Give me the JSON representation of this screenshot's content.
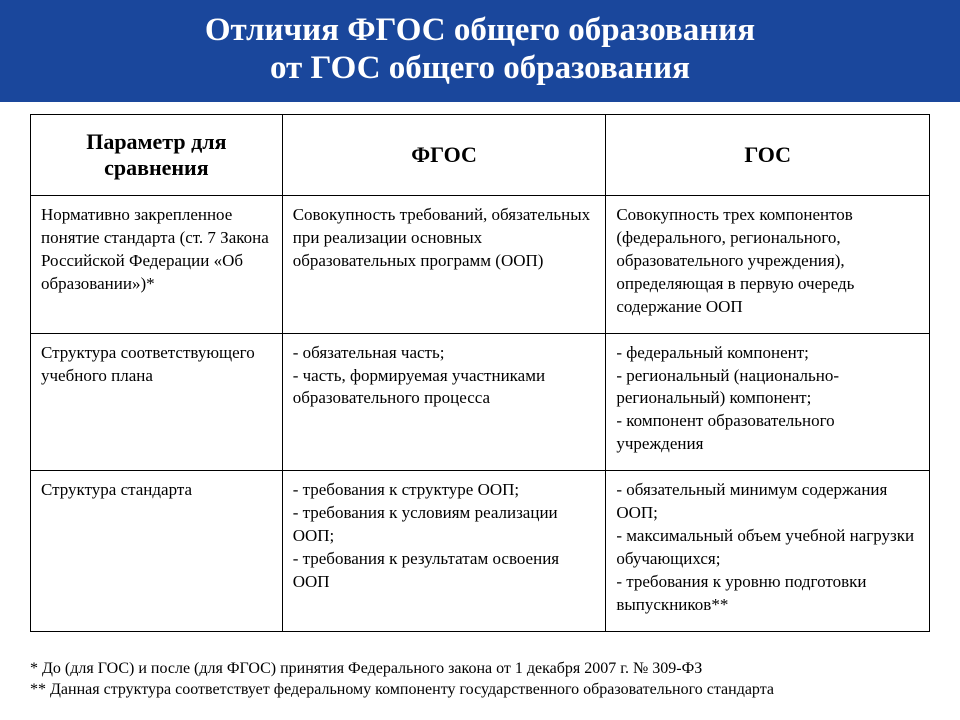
{
  "header": {
    "line1": "Отличия ФГОС общего образования",
    "line2": "от ГОС общего образования"
  },
  "table": {
    "columns": [
      "Параметр для сравнения",
      "ФГОС",
      "ГОС"
    ],
    "rows": [
      {
        "param": "Нормативно закрепленное понятие стандарта (ст. 7 Закона Российской Федерации «Об образовании»)*",
        "fgos": "Совокупность требований, обязательных при реализации основных образовательных программ (ООП)",
        "gos": "Совокупность трех компонентов (федерального, регионального, образовательного учреждения), определяющая в первую очередь содержание ООП"
      },
      {
        "param": "Структура соответствующего учебного плана",
        "fgos": "- обязательная часть;\n- часть, формируемая участниками образовательного процесса",
        "gos": "- федеральный  компонент;\n- региональный  (национально-региональный) компонент;\n- компонент образовательного учреждения"
      },
      {
        "param": "Структура стандарта",
        "fgos": "- требования к структуре ООП;\n- требования к условиям реализации ООП;\n- требования к результатам освоения ООП",
        "gos": "- обязательный минимум содержания ООП;\n- максимальный  объем учебной нагрузки обучающихся;\n- требования к уровню подготовки выпускников**"
      }
    ]
  },
  "footnotes": {
    "f1": "* До (для ГОС) и после (для ФГОС) принятия Федерального закона от 1 декабря 2007 г. № 309-ФЗ",
    "f2": "** Данная структура соответствует федеральному компоненту государственного образовательного стандарта"
  },
  "colors": {
    "header_bg": "#1a479c",
    "header_text": "#ffffff",
    "border": "#000000",
    "page_bg": "#ffffff"
  }
}
